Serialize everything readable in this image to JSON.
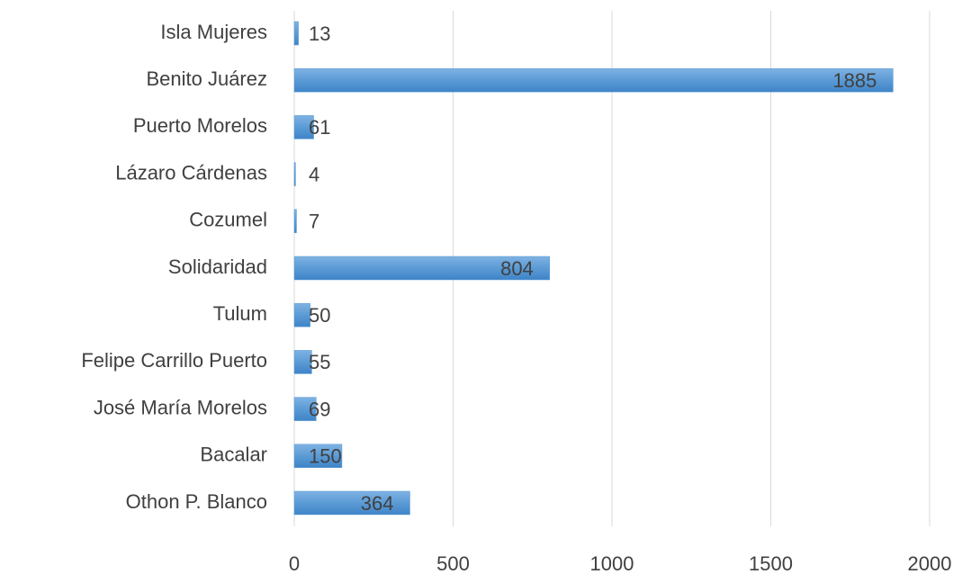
{
  "chart_data": {
    "type": "barh",
    "categories": [
      "Isla Mujeres",
      "Benito Juárez",
      "Puerto Morelos",
      "Lázaro Cárdenas",
      "Cozumel",
      "Solidaridad",
      "Tulum",
      "Felipe Carrillo Puerto",
      "José María Morelos",
      "Bacalar",
      "Othon P. Blanco"
    ],
    "values": [
      13,
      1885,
      61,
      4,
      7,
      804,
      50,
      55,
      69,
      150,
      364
    ],
    "color": "#5b9bd5",
    "xlim": [
      0,
      2000
    ],
    "xticks": [
      0,
      500,
      1000,
      1500,
      2000
    ],
    "grid": true
  }
}
